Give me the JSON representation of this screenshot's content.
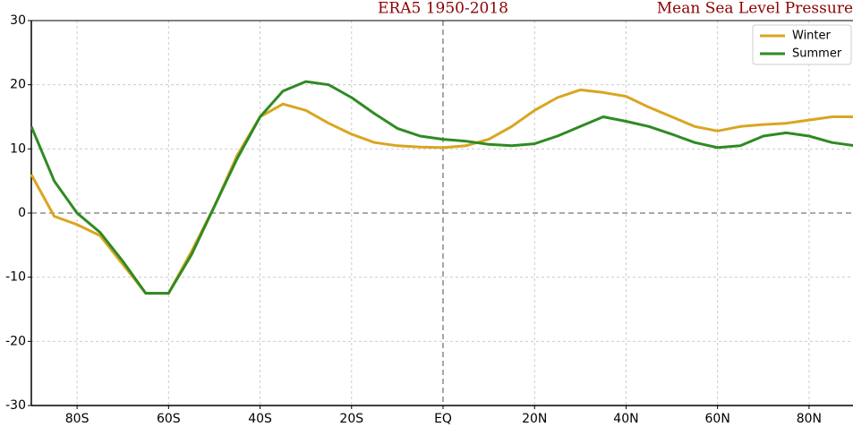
{
  "chart_data": {
    "type": "line",
    "title": "ERA5 1950-2018",
    "subtitle": "Mean Sea Level Pressure",
    "x": [
      -90,
      -85,
      -80,
      -75,
      -70,
      -65,
      -60,
      -55,
      -50,
      -45,
      -40,
      -35,
      -30,
      -25,
      -20,
      -15,
      -10,
      -5,
      0,
      5,
      10,
      15,
      20,
      25,
      30,
      35,
      40,
      45,
      50,
      55,
      60,
      65,
      70,
      75,
      80,
      85,
      90
    ],
    "series": [
      {
        "name": "Winter",
        "color": "#daa520",
        "values": [
          6,
          -0.5,
          -1.8,
          -3.5,
          -8,
          -12.5,
          -12.5,
          -6,
          1,
          9,
          15,
          17,
          16,
          14,
          12.3,
          11,
          10.5,
          10.3,
          10.2,
          10.5,
          11.5,
          13.5,
          16,
          18,
          19.2,
          18.8,
          18.2,
          16.5,
          15,
          13.5,
          12.8,
          13.5,
          13.8,
          14,
          14.5,
          15,
          15
        ]
      },
      {
        "name": "Summer",
        "color": "#2e8b22",
        "values": [
          13.5,
          5,
          0,
          -3,
          -7.5,
          -12.5,
          -12.5,
          -6.5,
          1,
          8.5,
          15,
          19,
          20.5,
          20,
          18,
          15.5,
          13.2,
          12,
          11.5,
          11.2,
          10.7,
          10.5,
          10.8,
          12,
          13.5,
          15,
          14.3,
          13.5,
          12.3,
          11,
          10.2,
          10.5,
          12,
          12.5,
          12,
          11,
          10.5
        ]
      }
    ],
    "xlim": [
      -90,
      90
    ],
    "xticks": [
      {
        "value": -80,
        "label": "80S"
      },
      {
        "value": -60,
        "label": "60S"
      },
      {
        "value": -40,
        "label": "40S"
      },
      {
        "value": -20,
        "label": "20S"
      },
      {
        "value": 0,
        "label": "EQ"
      },
      {
        "value": 20,
        "label": "20N"
      },
      {
        "value": 40,
        "label": "40N"
      },
      {
        "value": 60,
        "label": "60N"
      },
      {
        "value": 80,
        "label": "80N"
      }
    ],
    "ylim": [
      -30,
      30
    ],
    "yticks": [
      -30,
      -20,
      -10,
      0,
      10,
      20,
      30
    ],
    "grid": true,
    "legend": "upper right"
  }
}
